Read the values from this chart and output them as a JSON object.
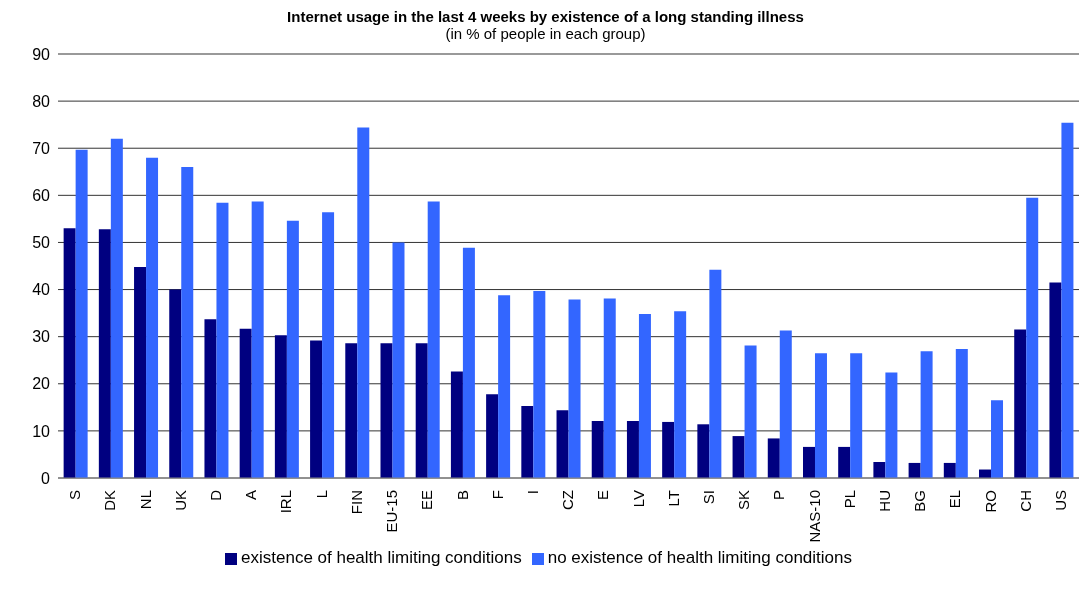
{
  "chart_data": {
    "type": "bar",
    "title": "Internet usage in the last 4 weeks by existence of a long standing illness",
    "subtitle": "(in % of people in each group)",
    "categories": [
      "S",
      "DK",
      "NL",
      "UK",
      "D",
      "A",
      "IRL",
      "L",
      "FIN",
      "EU-15",
      "EE",
      "B",
      "F",
      "I",
      "CZ",
      "E",
      "LV",
      "LT",
      "SI",
      "SK",
      "P",
      "NAS-10",
      "PL",
      "HU",
      "BG",
      "EL",
      "RO",
      "CH",
      "US"
    ],
    "series": [
      {
        "name": "existence of health limiting conditions",
        "color": "#000080",
        "values": [
          53,
          52.8,
          44.8,
          40,
          33.7,
          31.7,
          30.3,
          29.2,
          28.6,
          28.6,
          28.6,
          22.6,
          17.8,
          15.3,
          14.4,
          12.1,
          12.1,
          11.9,
          11.4,
          8.9,
          8.4,
          6.6,
          6.6,
          3.4,
          3.2,
          3.2,
          1.8,
          31.5,
          41.5
        ]
      },
      {
        "name": "no existence of health limiting conditions",
        "color": "#3366ff",
        "values": [
          69.7,
          72,
          68,
          66,
          58.4,
          58.7,
          54.6,
          56.4,
          74.4,
          50,
          58.7,
          48.9,
          38.8,
          39.7,
          37.9,
          38.1,
          34.8,
          35.4,
          44.2,
          28.1,
          31.3,
          26.5,
          26.5,
          22.4,
          26.9,
          27.4,
          16.5,
          59.5,
          75.4
        ]
      }
    ],
    "ylim": [
      0,
      90
    ],
    "yticks": [
      0,
      10,
      20,
      30,
      40,
      50,
      60,
      70,
      80,
      90
    ],
    "grid": "y",
    "legend": "bottom"
  }
}
